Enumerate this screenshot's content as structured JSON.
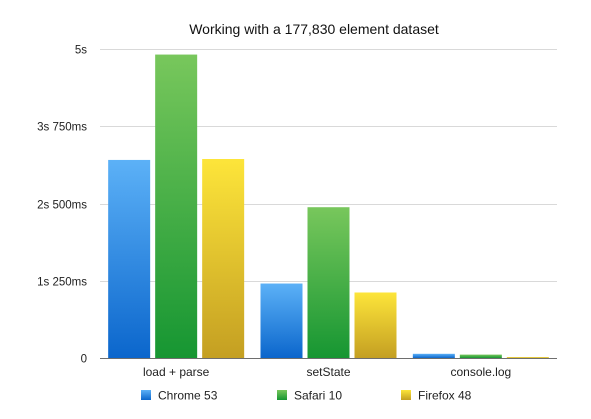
{
  "chart_data": {
    "type": "bar",
    "title": "Working with a 177,830 element dataset",
    "xlabel": "",
    "ylabel": "",
    "categories": [
      "load + parse",
      "setState",
      "console.log"
    ],
    "series": [
      {
        "name": "Chrome 53",
        "values": [
          3205,
          1205,
          68
        ]
      },
      {
        "name": "Safari 10",
        "values": [
          4910,
          2440,
          55
        ]
      },
      {
        "name": "Firefox 48",
        "values": [
          3220,
          1060,
          15
        ]
      }
    ],
    "value_unit": "ms",
    "ylim": [
      0,
      5000
    ],
    "y_ticks": [
      {
        "value": 0,
        "label": "0"
      },
      {
        "value": 1250,
        "label": "1s 250ms"
      },
      {
        "value": 2500,
        "label": "2s 500ms"
      },
      {
        "value": 3750,
        "label": "3s 750ms"
      },
      {
        "value": 5000,
        "label": "5s"
      }
    ],
    "grid": true,
    "legend_position": "bottom",
    "colors": {
      "Chrome 53": {
        "light": "#5cb1f7",
        "dark": "#0b66cc"
      },
      "Safari 10": {
        "light": "#78c75c",
        "dark": "#169632"
      },
      "Firefox 48": {
        "light": "#fde53a",
        "dark": "#c49f22"
      }
    }
  }
}
